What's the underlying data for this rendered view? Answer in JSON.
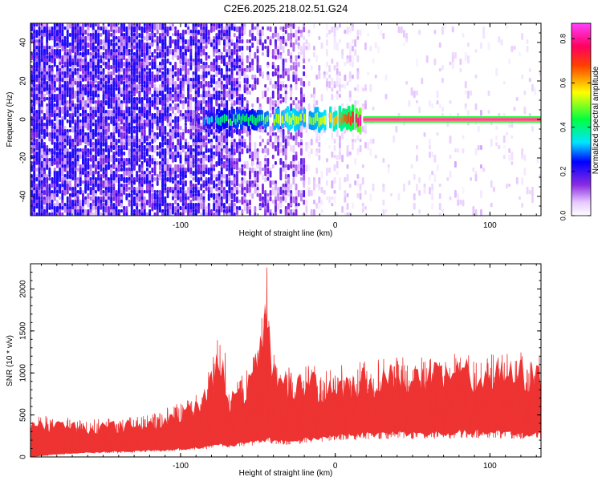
{
  "title": "C2E6.2025.218.02.51.G24",
  "chart_data": [
    {
      "type": "heatmap",
      "xlabel": "Height of straight line (km)",
      "ylabel": "Frequency (Hz)",
      "xlim": [
        -197,
        133
      ],
      "ylim": [
        -50,
        50
      ],
      "x_ticks": [
        -100,
        0,
        100
      ],
      "x_tick_labels": [
        "-100",
        "0",
        "100"
      ],
      "y_ticks": [
        -40,
        -20,
        0,
        20,
        40
      ],
      "y_tick_labels": [
        "-40",
        "-20",
        "0",
        "20",
        "40"
      ],
      "colorbar": {
        "label": "Normalized spectral amplitude",
        "range": [
          0,
          0.87
        ],
        "ticks": [
          0,
          0.2,
          0.4,
          0.6,
          0.8
        ],
        "tick_labels": [
          "0.0",
          "0.2",
          "0.4",
          "0.6",
          "0.8"
        ]
      },
      "line_segment": {
        "x_start": 18,
        "x_end": 133,
        "frequency": 0,
        "amplitude": 0.85
      },
      "noise_profile": [
        {
          "x_from": -197,
          "x_to": -120,
          "density": 0.9,
          "amplitude": 0.25
        },
        {
          "x_from": -120,
          "x_to": -60,
          "density": 0.75,
          "amplitude": 0.22
        },
        {
          "x_from": -60,
          "x_to": -20,
          "density": 0.5,
          "amplitude": 0.15
        },
        {
          "x_from": -20,
          "x_to": 20,
          "density": 0.2,
          "amplitude": 0.06
        },
        {
          "x_from": 20,
          "x_to": 133,
          "density": 0.06,
          "amplitude": 0.05
        }
      ],
      "band_profile": [
        {
          "x": -92,
          "amplitude": 0.15
        },
        {
          "x": -82,
          "amplitude": 0.35
        },
        {
          "x": -62,
          "amplitude": 0.45
        },
        {
          "x": -55,
          "amplitude": 0.4
        },
        {
          "x": -42,
          "amplitude": 0.5
        },
        {
          "x": -30,
          "amplitude": 0.55
        },
        {
          "x": -15,
          "amplitude": 0.5
        },
        {
          "x": 0,
          "amplitude": 0.6
        },
        {
          "x": 10,
          "amplitude": 0.7
        },
        {
          "x": 18,
          "amplitude": 0.85
        }
      ]
    },
    {
      "type": "area",
      "xlabel": "Height of straight line (km)",
      "ylabel": "SNR (10 * v/v)",
      "xlim": [
        -197,
        133
      ],
      "ylim": [
        0,
        2300
      ],
      "x_ticks": [
        -100,
        0,
        100
      ],
      "x_tick_labels": [
        "-100",
        "0",
        "100"
      ],
      "y_ticks": [
        0,
        500,
        1000,
        1500,
        2000
      ],
      "y_tick_labels": [
        "0",
        "500",
        "1000",
        "1500",
        "2000"
      ],
      "color": "#ee3333",
      "envelope": {
        "x": [
          -197,
          -180,
          -160,
          -140,
          -120,
          -110,
          -100,
          -92,
          -85,
          -80,
          -75,
          -72,
          -70,
          -65,
          -60,
          -55,
          -50,
          -46,
          -44,
          -42,
          -40,
          -36,
          -30,
          -25,
          -20,
          -15,
          -10,
          -5,
          0,
          20,
          40,
          60,
          80,
          100,
          120,
          133
        ],
        "min": [
          0,
          50,
          80,
          100,
          120,
          130,
          150,
          160,
          180,
          200,
          220,
          240,
          200,
          220,
          250,
          260,
          300,
          320,
          330,
          320,
          300,
          300,
          300,
          300,
          320,
          330,
          350,
          380,
          400,
          420,
          450,
          430,
          450,
          450,
          430,
          430
        ],
        "max": [
          500,
          480,
          450,
          470,
          500,
          580,
          650,
          700,
          900,
          1100,
          1550,
          1500,
          900,
          850,
          1000,
          1100,
          1400,
          1900,
          2300,
          1800,
          1300,
          1100,
          1150,
          1050,
          1100,
          1200,
          1000,
          1050,
          1100,
          1150,
          1200,
          1180,
          1250,
          1230,
          1250,
          1200
        ]
      }
    }
  ]
}
